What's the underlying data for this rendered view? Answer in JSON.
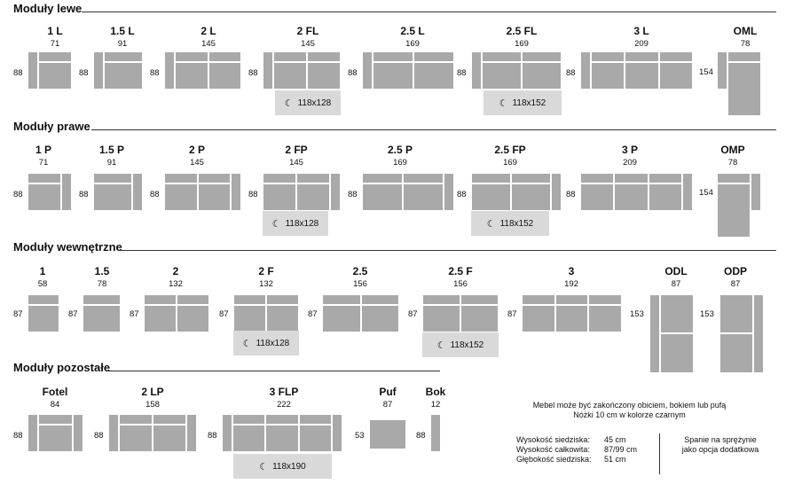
{
  "sections": [
    {
      "title": "Moduły lewe"
    },
    {
      "title": "Moduły prawe"
    },
    {
      "title": "Moduły wewnętrzne"
    },
    {
      "title": "Moduły pozostałe"
    }
  ],
  "lewe": [
    {
      "name": "1 L",
      "width": "71",
      "depth": "88"
    },
    {
      "name": "1.5 L",
      "width": "91",
      "depth": "88"
    },
    {
      "name": "2 L",
      "width": "145",
      "depth": "88"
    },
    {
      "name": "2 FL",
      "width": "145",
      "depth": "88",
      "sleep": "118x128"
    },
    {
      "name": "2.5 L",
      "width": "169",
      "depth": "88"
    },
    {
      "name": "2.5 FL",
      "width": "169",
      "depth": "88",
      "sleep": "118x152"
    },
    {
      "name": "3 L",
      "width": "209",
      "depth": "88"
    },
    {
      "name": "OML",
      "width": "78",
      "depth": "154"
    }
  ],
  "prawe": [
    {
      "name": "1 P",
      "width": "71",
      "depth": "88"
    },
    {
      "name": "1.5 P",
      "width": "91",
      "depth": "88"
    },
    {
      "name": "2 P",
      "width": "145",
      "depth": "88"
    },
    {
      "name": "2 FP",
      "width": "145",
      "depth": "88",
      "sleep": "118x128"
    },
    {
      "name": "2.5 P",
      "width": "169",
      "depth": "88"
    },
    {
      "name": "2.5 FP",
      "width": "169",
      "depth": "88",
      "sleep": "118x152"
    },
    {
      "name": "3 P",
      "width": "209",
      "depth": "88"
    },
    {
      "name": "OMP",
      "width": "78",
      "depth": "154"
    }
  ],
  "wewnetrzne": [
    {
      "name": "1",
      "width": "58",
      "depth": "87"
    },
    {
      "name": "1.5",
      "width": "78",
      "depth": "87"
    },
    {
      "name": "2",
      "width": "132",
      "depth": "87"
    },
    {
      "name": "2 F",
      "width": "132",
      "depth": "87",
      "sleep": "118x128"
    },
    {
      "name": "2.5",
      "width": "156",
      "depth": "87"
    },
    {
      "name": "2.5 F",
      "width": "156",
      "depth": "87",
      "sleep": "118x152"
    },
    {
      "name": "3",
      "width": "192",
      "depth": "87"
    },
    {
      "name": "ODL",
      "width": "87",
      "depth": "153"
    },
    {
      "name": "ODP",
      "width": "87",
      "depth": "153"
    }
  ],
  "pozostale": [
    {
      "name": "Fotel",
      "width": "84",
      "depth": "88"
    },
    {
      "name": "2 LP",
      "width": "158",
      "depth": "88"
    },
    {
      "name": "3 FLP",
      "width": "222",
      "depth": "88",
      "sleep": "118x190"
    },
    {
      "name": "Puf",
      "width": "87",
      "depth": "53"
    },
    {
      "name": "Bok",
      "width": "12",
      "depth": "88"
    }
  ],
  "notes": {
    "finish_line1": "Mebel może być zakończony obiciem, bokiem lub pufą",
    "finish_line2": "Nóżki 10 cm w kolorze czarnym",
    "seat_height_label": "Wysokość siedziska:",
    "seat_height_value": "45 cm",
    "total_height_label": "Wysokość całkowita:",
    "total_height_value": "87/99 cm",
    "seat_depth_label": "Głębokość siedziska:",
    "seat_depth_value": "51 cm",
    "spring_line1": "Spanie na sprężynie",
    "spring_line2": "jako opcja dodatkowa"
  },
  "colors": {
    "module_gray": "#a9a9a9",
    "sleep_area": "#d9d9d9"
  }
}
